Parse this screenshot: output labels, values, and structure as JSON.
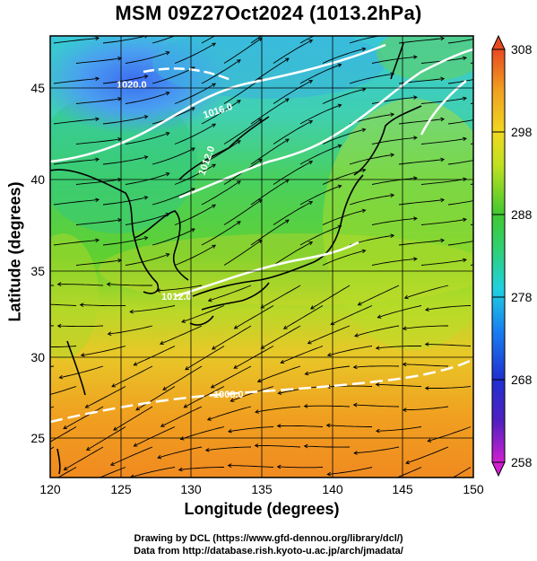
{
  "title": "MSM 09Z27Oct2024 (1013.2hPa)",
  "axes": {
    "xlabel": "Longitude (degrees)",
    "ylabel": "Latitude  (degrees)",
    "x_ticks": [
      "120",
      "125",
      "130",
      "135",
      "140",
      "145",
      "150"
    ],
    "y_ticks": [
      "25",
      "30",
      "35",
      "40",
      "45"
    ],
    "xlim": [
      120,
      150
    ],
    "ylim": [
      22.5,
      47.5
    ]
  },
  "colorbar": {
    "ticks": [
      "308",
      "298",
      "288",
      "278",
      "268",
      "258"
    ],
    "range": [
      258,
      308
    ],
    "colors": [
      "#d020d0",
      "#2020c8",
      "#1878f0",
      "#20d0e0",
      "#30d070",
      "#30c830",
      "#b0e020",
      "#f0e020",
      "#f0a020",
      "#e84a20"
    ]
  },
  "isobar_labels": [
    "1020.0",
    "1016.0",
    "1012.0",
    "1012.0",
    "1008.0"
  ],
  "credits": {
    "line1": "Drawing by DCL (https://www.gfd-dennou.org/library/dcl/)",
    "line2": "Data from http://database.rish.kyoto-u.ac.jp/arch/jmadata/"
  },
  "colors": {
    "isobar": "#ffffff",
    "stream": "#000000",
    "coast": "#000000"
  }
}
